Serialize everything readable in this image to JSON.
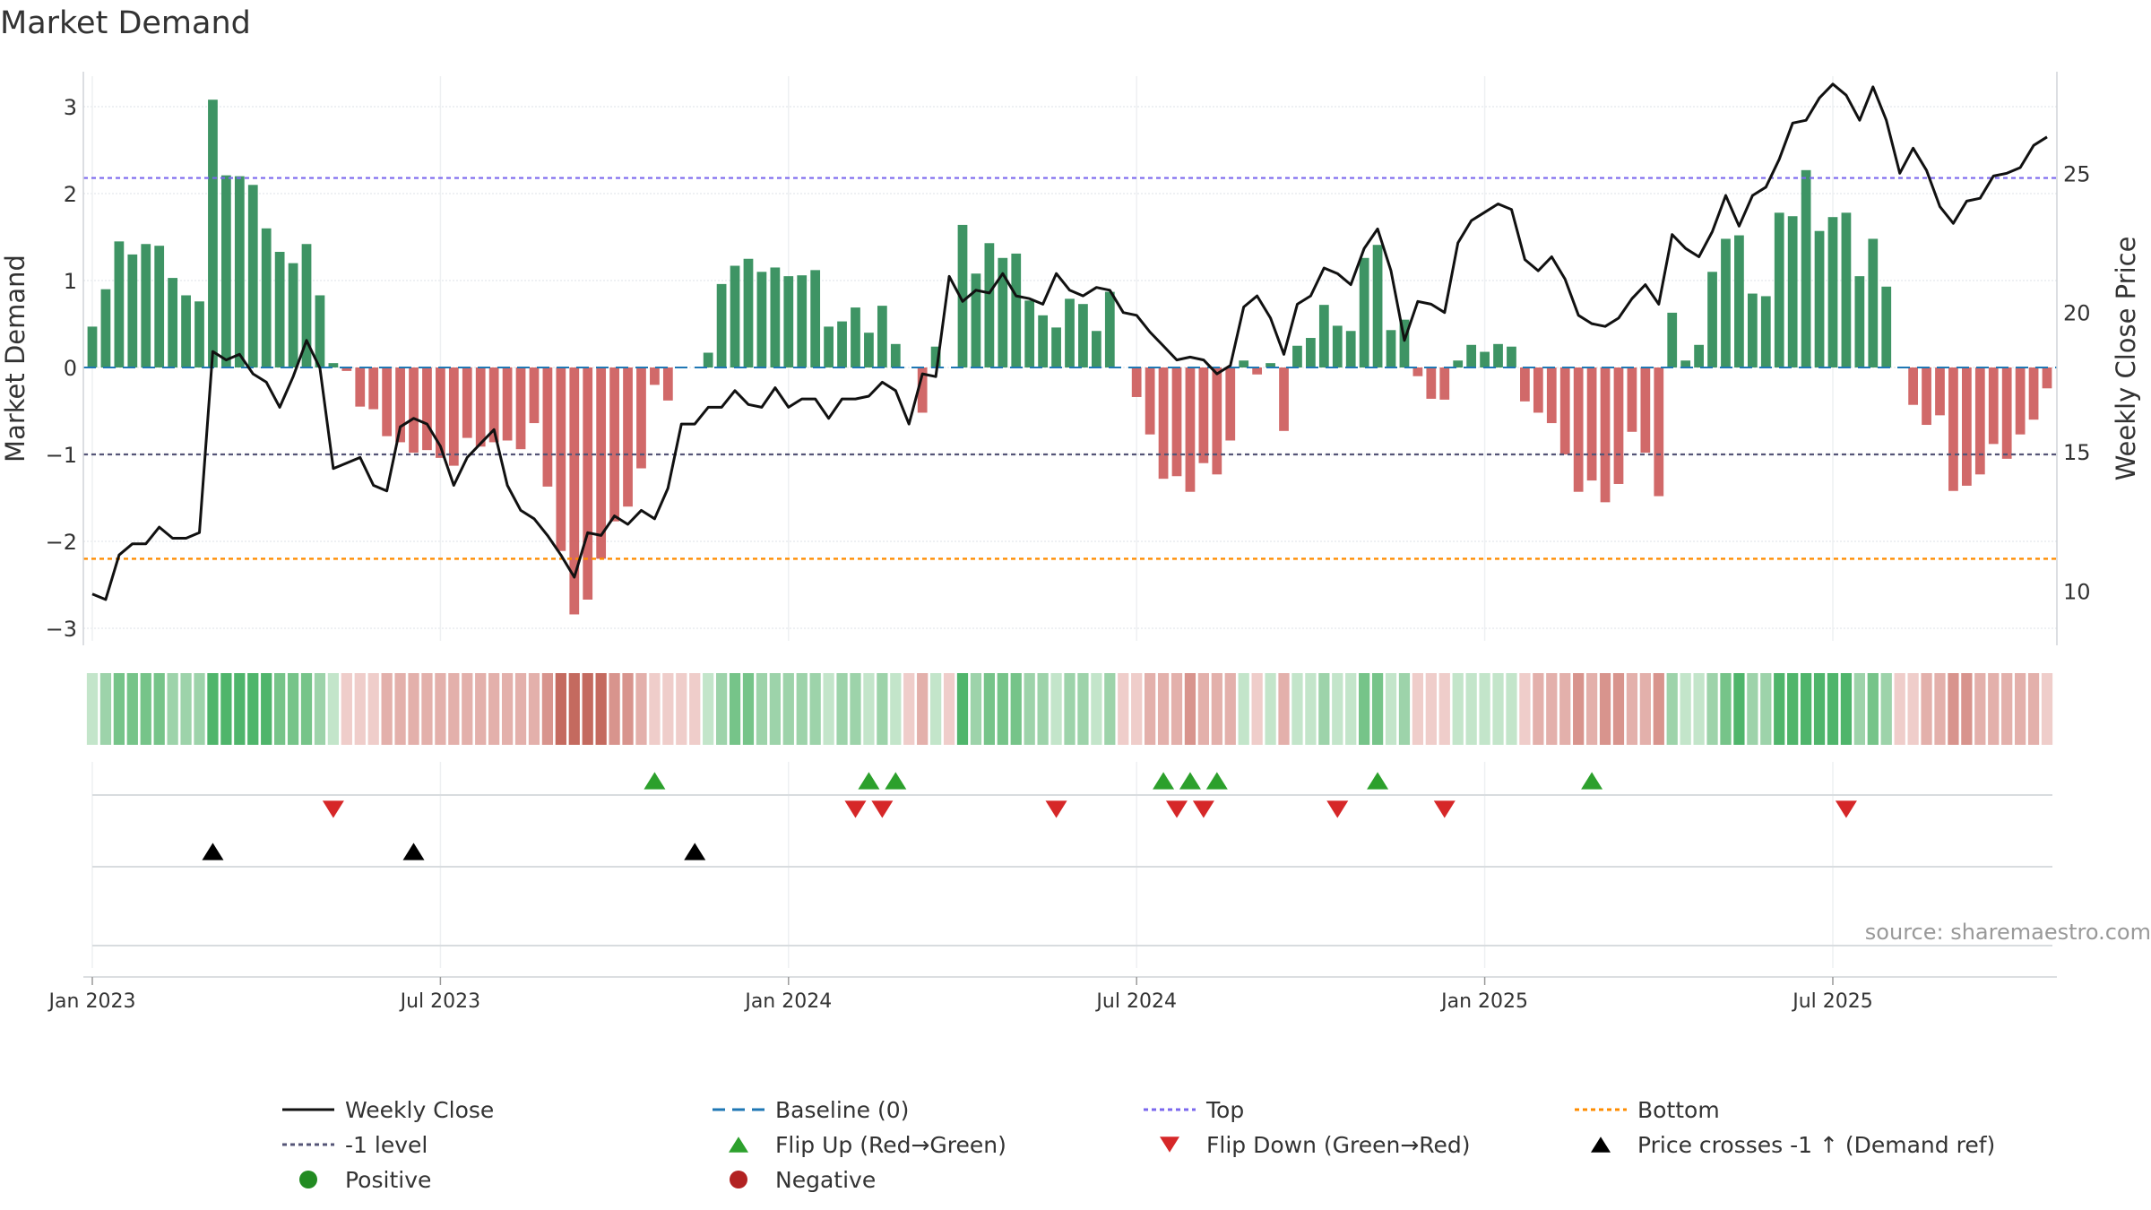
{
  "chart_data": {
    "type": "bar",
    "title": "Market Demand",
    "ylabel": "Market Demand",
    "y2label": "Weekly Close Price",
    "ylim": [
      -3.2,
      3.2
    ],
    "y2lim": [
      8.7,
      28.0
    ],
    "yticks": [
      3,
      2,
      1,
      0,
      -1,
      -2,
      -3
    ],
    "ytick_labels": [
      "3",
      "2",
      "1",
      "0",
      "−1",
      "−2",
      "−3"
    ],
    "y2ticks": [
      25,
      20,
      15,
      10
    ],
    "y2tick_labels": [
      "25",
      "20",
      "15",
      "10"
    ],
    "xtick_weeks": [
      0,
      26,
      52,
      78,
      104,
      130
    ],
    "xtick_labels": [
      "Jan 2023",
      "Jul 2023",
      "Jan 2024",
      "Jul 2024",
      "Jan 2025",
      "Jul 2025"
    ],
    "reference_lines": {
      "top": 2.18,
      "bottom": -2.2,
      "minus_one": -1.0,
      "baseline": 0
    },
    "demand": [
      0.47,
      0.9,
      1.45,
      1.3,
      1.42,
      1.4,
      1.03,
      0.83,
      0.76,
      3.08,
      2.21,
      2.2,
      2.1,
      1.6,
      1.33,
      1.2,
      1.42,
      0.83,
      0.05,
      -0.04,
      -0.45,
      -0.48,
      -0.79,
      -0.86,
      -0.98,
      -0.95,
      -1.04,
      -1.13,
      -0.81,
      -0.91,
      -0.86,
      -0.84,
      -0.94,
      -0.64,
      -1.37,
      -2.11,
      -2.84,
      -2.67,
      -2.2,
      -1.77,
      -1.6,
      -1.16,
      -0.2,
      -0.38,
      0.0,
      0.0,
      0.17,
      0.96,
      1.17,
      1.25,
      1.1,
      1.15,
      1.05,
      1.06,
      1.12,
      0.47,
      0.53,
      0.69,
      0.4,
      0.71,
      0.27,
      0.0,
      -0.52,
      0.24,
      0.0,
      1.64,
      1.08,
      1.43,
      1.26,
      1.31,
      0.77,
      0.6,
      0.46,
      0.79,
      0.73,
      0.42,
      0.87,
      0.0,
      -0.34,
      -0.77,
      -1.28,
      -1.25,
      -1.43,
      -1.1,
      -1.23,
      -0.84,
      0.08,
      -0.08,
      0.05,
      -0.73,
      0.25,
      0.34,
      0.72,
      0.48,
      0.42,
      1.26,
      1.41,
      0.43,
      0.55,
      -0.1,
      -0.36,
      -0.37,
      0.08,
      0.26,
      0.18,
      0.27,
      0.24,
      -0.39,
      -0.52,
      -0.64,
      -1.0,
      -1.43,
      -1.3,
      -1.55,
      -1.34,
      -0.74,
      -0.98,
      -1.48,
      0.63,
      0.08,
      0.26,
      1.1,
      1.48,
      1.52,
      0.85,
      0.82,
      1.78,
      1.74,
      2.27,
      1.57,
      1.73,
      1.78,
      1.05,
      1.48,
      0.93,
      0.0,
      -0.43,
      -0.66,
      -0.55,
      -1.42,
      -1.36,
      -1.23,
      -0.88,
      -1.05,
      -0.77,
      -0.6,
      -0.24
    ],
    "close": [
      9.9,
      9.7,
      11.3,
      11.7,
      11.7,
      12.3,
      11.9,
      11.9,
      12.1,
      18.6,
      18.3,
      18.5,
      17.8,
      17.5,
      16.6,
      17.7,
      19.0,
      18.0,
      14.4,
      14.6,
      14.8,
      13.8,
      13.6,
      15.9,
      16.2,
      16.0,
      15.2,
      13.8,
      14.8,
      15.3,
      15.8,
      13.8,
      12.9,
      12.6,
      12.0,
      11.3,
      10.5,
      12.1,
      12.0,
      12.7,
      12.4,
      12.9,
      12.6,
      13.7,
      16.0,
      16.0,
      16.6,
      16.6,
      17.2,
      16.7,
      16.6,
      17.3,
      16.6,
      16.9,
      16.9,
      16.2,
      16.9,
      16.9,
      17.0,
      17.5,
      17.2,
      16.0,
      17.8,
      17.7,
      21.3,
      20.4,
      20.8,
      20.7,
      21.4,
      20.6,
      20.5,
      20.3,
      21.4,
      20.8,
      20.6,
      20.9,
      20.8,
      20.0,
      19.9,
      19.3,
      18.8,
      18.3,
      18.4,
      18.3,
      17.8,
      18.1,
      20.2,
      20.6,
      19.8,
      18.5,
      20.3,
      20.6,
      21.6,
      21.4,
      21.0,
      22.3,
      23.0,
      21.5,
      19.0,
      20.4,
      20.3,
      20.0,
      22.5,
      23.3,
      23.6,
      23.9,
      23.7,
      21.9,
      21.5,
      22.0,
      21.2,
      19.9,
      19.6,
      19.5,
      19.8,
      20.5,
      21.0,
      20.3,
      22.8,
      22.3,
      22.0,
      22.9,
      24.2,
      23.1,
      24.2,
      24.5,
      25.5,
      26.8,
      26.9,
      27.7,
      28.2,
      27.8,
      26.9,
      28.1,
      26.9,
      25.0,
      25.9,
      25.1,
      23.8,
      23.2,
      24.0,
      24.1,
      24.9,
      25.0,
      25.2,
      26.0,
      26.3
    ],
    "flip_up_weeks": [
      42,
      58,
      60,
      80,
      82,
      84,
      96,
      112
    ],
    "flip_down_weeks": [
      18,
      57,
      59,
      72,
      81,
      83,
      93,
      101,
      131
    ],
    "price_cross_weeks": [
      9,
      24,
      45
    ],
    "colors": {
      "green": "#2e8b57",
      "red": "#cd5c5c",
      "line": "#111111",
      "baseline": "#1f77b4",
      "top": "#7b68ee",
      "bottom": "#ff8c00",
      "minus_one": "#555577",
      "flip_up": "#2ca02c",
      "flip_down": "#d62728",
      "cross": "#000000",
      "positive": "#228b22",
      "negative": "#b22222"
    },
    "legend": {
      "items": [
        {
          "label": "Weekly Close",
          "marker": "line-solid",
          "color": "#111111"
        },
        {
          "label": "Baseline (0)",
          "marker": "line-dash",
          "color": "#1f77b4"
        },
        {
          "label": "Top",
          "marker": "line-dot",
          "color": "#7b68ee"
        },
        {
          "label": "Bottom",
          "marker": "line-dot",
          "color": "#ff8c00"
        },
        {
          "label": "-1 level",
          "marker": "line-dot",
          "color": "#555577"
        },
        {
          "label": "Flip Up (Red→Green)",
          "marker": "triangle-up",
          "color": "#2ca02c"
        },
        {
          "label": "Flip Down (Green→Red)",
          "marker": "triangle-down",
          "color": "#d62728"
        },
        {
          "label": "Price crosses -1 ↑ (Demand ref)",
          "marker": "triangle-up",
          "color": "#000000"
        },
        {
          "label": "Positive",
          "marker": "dot",
          "color": "#228b22"
        },
        {
          "label": "Negative",
          "marker": "dot",
          "color": "#b22222"
        }
      ]
    },
    "source": "source: sharemaestro.com"
  }
}
